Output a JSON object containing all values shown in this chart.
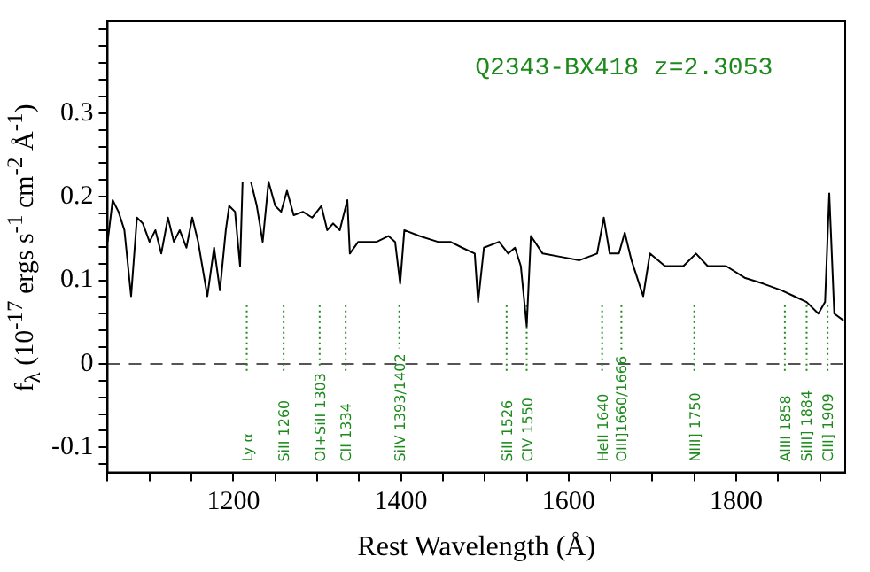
{
  "chart_data": {
    "type": "line",
    "xlabel": "Rest Wavelength (Å)",
    "ylabel": "f$_{λ}$ (10$^{-17}$ ergs s$^{-1}$ cm$^{-2}$ Å$^{-1}$)",
    "annotations": [
      "Q2343-BX418 z=2.3053"
    ],
    "x": [
      1050,
      1056,
      1063,
      1070,
      1078,
      1085,
      1092,
      1100,
      1107,
      1114,
      1122,
      1129,
      1136,
      1144,
      1151,
      1158,
      1169,
      1177,
      1184,
      1191,
      1195,
      1202,
      1208,
      1211,
      1213,
      1218,
      1221,
      1228,
      1235,
      1242,
      1250,
      1257,
      1264,
      1272,
      1283,
      1294,
      1305,
      1312,
      1319,
      1327,
      1336,
      1339,
      1349,
      1371,
      1385,
      1393,
      1399,
      1404,
      1422,
      1444,
      1459,
      1473,
      1488,
      1492,
      1499,
      1517,
      1528,
      1536,
      1543,
      1550,
      1555,
      1569,
      1591,
      1613,
      1634,
      1642,
      1649,
      1660,
      1667,
      1675,
      1689,
      1697,
      1715,
      1737,
      1752,
      1766,
      1788,
      1810,
      1832,
      1854,
      1869,
      1884,
      1898,
      1906,
      1911,
      1917,
      1928
    ],
    "series": [
      {
        "color": "#000000",
        "values": [
          0.146,
          0.196,
          0.182,
          0.16,
          0.081,
          0.175,
          0.168,
          0.146,
          0.16,
          0.132,
          0.175,
          0.146,
          0.16,
          0.139,
          0.175,
          0.146,
          0.081,
          0.139,
          0.088,
          0.16,
          0.189,
          0.182,
          0.117,
          0.218,
          null,
          null,
          0.218,
          0.189,
          0.146,
          0.218,
          0.189,
          0.182,
          0.207,
          0.178,
          0.182,
          0.175,
          0.189,
          0.16,
          0.168,
          0.16,
          0.196,
          0.132,
          0.146,
          0.146,
          0.153,
          0.146,
          0.096,
          0.16,
          0.153,
          0.146,
          0.146,
          0.139,
          0.132,
          0.074,
          0.139,
          0.146,
          0.132,
          0.139,
          0.117,
          0.045,
          0.153,
          0.132,
          0.128,
          0.124,
          0.132,
          0.175,
          0.132,
          0.132,
          0.157,
          0.124,
          0.081,
          0.132,
          0.117,
          0.117,
          0.132,
          0.117,
          0.117,
          0.103,
          0.096,
          0.088,
          0.081,
          0.074,
          0.06,
          0.074,
          0.204,
          0.06,
          0.052
        ]
      }
    ],
    "xlim": [
      1050,
      1930
    ],
    "xticks": [
      {
        "value": 1050,
        "label": null
      },
      {
        "value": 1100,
        "label": null
      },
      {
        "value": 1150,
        "label": null
      },
      1200,
      {
        "value": 1250,
        "label": null
      },
      {
        "value": 1300,
        "label": null
      },
      {
        "value": 1350,
        "label": null
      },
      1400,
      {
        "value": 1450,
        "label": null
      },
      {
        "value": 1500,
        "label": null
      },
      {
        "value": 1550,
        "label": null
      },
      1600,
      {
        "value": 1650,
        "label": null
      },
      {
        "value": 1700,
        "label": null
      },
      {
        "value": 1750,
        "label": null
      },
      1800,
      {
        "value": 1850,
        "label": null
      },
      {
        "value": 1900,
        "label": null
      }
    ],
    "ylim": [
      -0.13,
      0.41
    ],
    "yticks": [
      {
        "value": -0.12,
        "label": null
      },
      -0.1,
      {
        "value": -0.08,
        "label": null
      },
      {
        "value": -0.06,
        "label": null
      },
      {
        "value": -0.04,
        "label": null
      },
      {
        "value": -0.02,
        "label": null
      },
      0,
      {
        "value": 0.02,
        "label": null
      },
      {
        "value": 0.04,
        "label": null
      },
      {
        "value": 0.06,
        "label": null
      },
      {
        "value": 0.08,
        "label": null
      },
      0.1,
      {
        "value": 0.12,
        "label": null
      },
      {
        "value": 0.14,
        "label": null
      },
      {
        "value": 0.16,
        "label": null
      },
      {
        "value": 0.18,
        "label": null
      },
      0.2,
      {
        "value": 0.22,
        "label": null
      },
      {
        "value": 0.24,
        "label": null
      },
      {
        "value": 0.26,
        "label": null
      },
      {
        "value": 0.28,
        "label": null
      },
      0.3,
      {
        "value": 0.32,
        "label": null
      },
      {
        "value": 0.34,
        "label": null
      },
      {
        "value": 0.36,
        "label": null
      },
      {
        "value": 0.38,
        "label": null
      },
      {
        "value": 0.4,
        "label": null
      }
    ],
    "grid": false,
    "legend": false,
    "marker": "none",
    "line_style": "solid",
    "ref_lines": [
      {
        "axis": "y",
        "value": 0,
        "color": "#555555",
        "line_style": "dashed"
      },
      {
        "axis": "x",
        "value": 1216,
        "label": "Ly α",
        "color": "#1e8a1e",
        "line_style": "dotted"
      },
      {
        "axis": "x",
        "value": 1260,
        "label": "SiII 1260",
        "color": "#1e8a1e",
        "line_style": "dotted"
      },
      {
        "axis": "x",
        "value": 1303,
        "label": "OI+SiII 1303",
        "color": "#1e8a1e",
        "line_style": "dotted"
      },
      {
        "axis": "x",
        "value": 1334,
        "label": "CII 1334",
        "color": "#1e8a1e",
        "line_style": "dotted"
      },
      {
        "axis": "x",
        "value": 1398,
        "label": "SiIV 1393/1402",
        "color": "#1e8a1e",
        "line_style": "dotted"
      },
      {
        "axis": "x",
        "value": 1526,
        "label": "SiII 1526",
        "color": "#1e8a1e",
        "line_style": "dotted"
      },
      {
        "axis": "x",
        "value": 1550,
        "label": "CIV 1550",
        "color": "#1e8a1e",
        "line_style": "dotted"
      },
      {
        "axis": "x",
        "value": 1640,
        "label": "HeII 1640",
        "color": "#1e8a1e",
        "line_style": "dotted"
      },
      {
        "axis": "x",
        "value": 1663,
        "label": "OIII]1660/1666",
        "color": "#1e8a1e",
        "line_style": "dotted"
      },
      {
        "axis": "x",
        "value": 1750,
        "label": "NIII] 1750",
        "color": "#1e8a1e",
        "line_style": "dotted"
      },
      {
        "axis": "x",
        "value": 1858,
        "label": "AlIII 1858",
        "color": "#1e8a1e",
        "line_style": "dotted"
      },
      {
        "axis": "x",
        "value": 1884,
        "label": "SiIII] 1884",
        "color": "#1e8a1e",
        "line_style": "dotted"
      },
      {
        "axis": "x",
        "value": 1909,
        "label": "CIII] 1909",
        "color": "#1e8a1e",
        "line_style": "dotted"
      }
    ]
  }
}
